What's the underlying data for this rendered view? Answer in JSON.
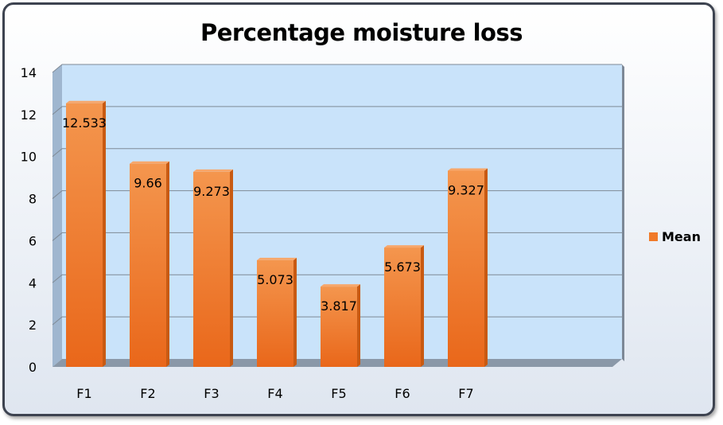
{
  "chart_data": {
    "type": "bar",
    "title": "Percentage moisture loss",
    "categories": [
      "F1",
      "F2",
      "F3",
      "F4",
      "F5",
      "F6",
      "F7"
    ],
    "series": [
      {
        "name": "Mean",
        "values": [
          12.533,
          9.66,
          9.273,
          5.073,
          3.817,
          5.673,
          9.327
        ]
      }
    ],
    "data_labels": [
      "12.533",
      "9.66",
      "9.273",
      "5.073",
      "3.817",
      "5.673",
      "9.327"
    ],
    "ylim": [
      0,
      14
    ],
    "yticks": [
      "0",
      "2",
      "4",
      "6",
      "8",
      "10",
      "12",
      "14"
    ],
    "grid": true,
    "legend_position": "right",
    "colors": {
      "bar": "#f07a28",
      "plot_bg": "#c9e3fa",
      "frame": "#3d4350"
    }
  }
}
